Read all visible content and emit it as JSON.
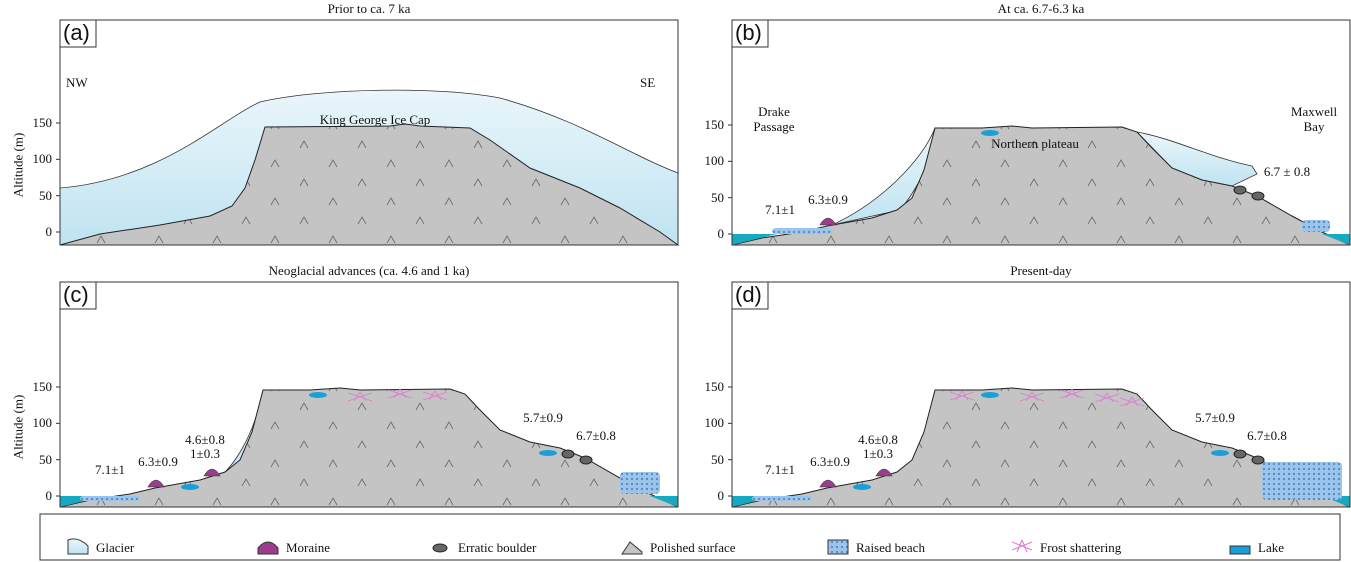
{
  "panels": [
    {
      "letter": "(a)",
      "title": "Prior to ca. 7 ka",
      "y_label": "Altitude (m)",
      "yticks": [
        0,
        50,
        100,
        150
      ],
      "labels": [
        "NW",
        "SE",
        "King George Ice Cap"
      ]
    },
    {
      "letter": "(b)",
      "title": "At ca. 6.7-6.3 ka",
      "yticks": [
        0,
        50,
        100,
        150
      ],
      "labels": [
        "Drake Passage",
        "Maxwell Bay",
        "Northern plateau",
        "7.1±1",
        "6.3±0.9",
        "6.7 ± 0.8"
      ]
    },
    {
      "letter": "(c)",
      "title": "Neoglacial advances (ca. 4.6 and 1 ka)",
      "y_label": "Altitude (m)",
      "yticks": [
        0,
        50,
        100,
        150
      ],
      "labels": [
        "7.1±1",
        "6.3±0.9",
        "4.6±0.8",
        "1±0.3",
        "5.7±0.9",
        "6.7±0.8"
      ]
    },
    {
      "letter": "(d)",
      "title": "Present-day",
      "yticks": [
        0,
        50,
        100,
        150
      ],
      "labels": [
        "7.1±1",
        "6.3±0.9",
        "4.6±0.8",
        "1±0.3",
        "5.7±0.9",
        "6.7±0.8"
      ]
    }
  ],
  "legend": [
    "Glacier",
    "Moraine",
    "Erratic boulder",
    "Polished surface",
    "Raised beach",
    "Frost shattering",
    "Lake"
  ]
}
